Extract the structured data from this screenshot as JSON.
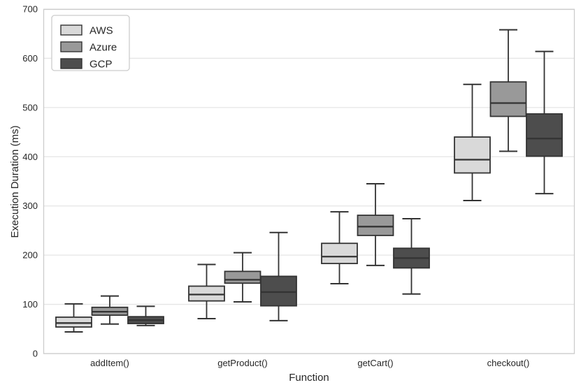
{
  "chart_data": {
    "type": "boxplot",
    "title": "",
    "xlabel": "Function",
    "ylabel": "Execution Duration (ms)",
    "ylim": [
      0,
      700
    ],
    "yticks": [
      0,
      100,
      200,
      300,
      400,
      500,
      600,
      700
    ],
    "categories": [
      "addItem()",
      "getProduct()",
      "getCart()",
      "checkout()"
    ],
    "grid": true,
    "legend": {
      "position": "upper-left",
      "entries": [
        "AWS",
        "Azure",
        "GCP"
      ]
    },
    "series": [
      {
        "name": "AWS",
        "fill": "#d9d9d9",
        "boxes": [
          {
            "whislo": 44,
            "q1": 54,
            "med": 62,
            "q3": 74,
            "whishi": 101
          },
          {
            "whislo": 71,
            "q1": 107,
            "med": 120,
            "q3": 137,
            "whishi": 181
          },
          {
            "whislo": 142,
            "q1": 183,
            "med": 197,
            "q3": 224,
            "whishi": 288
          },
          {
            "whislo": 311,
            "q1": 367,
            "med": 394,
            "q3": 440,
            "whishi": 547
          }
        ]
      },
      {
        "name": "Azure",
        "fill": "#999999",
        "boxes": [
          {
            "whislo": 60,
            "q1": 78,
            "med": 85,
            "q3": 94,
            "whishi": 117
          },
          {
            "whislo": 105,
            "q1": 143,
            "med": 150,
            "q3": 167,
            "whishi": 205
          },
          {
            "whislo": 179,
            "q1": 240,
            "med": 258,
            "q3": 281,
            "whishi": 345
          },
          {
            "whislo": 411,
            "q1": 482,
            "med": 509,
            "q3": 552,
            "whishi": 658
          }
        ]
      },
      {
        "name": "GCP",
        "fill": "#4d4d4d",
        "boxes": [
          {
            "whislo": 57,
            "q1": 61,
            "med": 68,
            "q3": 75,
            "whishi": 96
          },
          {
            "whislo": 67,
            "q1": 97,
            "med": 125,
            "q3": 157,
            "whishi": 246
          },
          {
            "whislo": 121,
            "q1": 174,
            "med": 194,
            "q3": 214,
            "whishi": 274
          },
          {
            "whislo": 325,
            "q1": 401,
            "med": 437,
            "q3": 487,
            "whishi": 614
          }
        ]
      }
    ],
    "style": {
      "line_color": "#333333",
      "grid_color": "#e5e5e5",
      "spine_color": "#cccccc",
      "text_color": "#262626",
      "background": "#ffffff"
    }
  }
}
